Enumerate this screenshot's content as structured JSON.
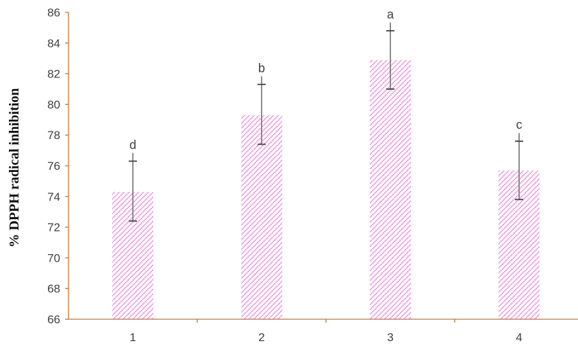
{
  "chart_data": {
    "type": "bar",
    "title": "",
    "xlabel": "",
    "ylabel": "% DPPH radical inhibition",
    "ylim": [
      66,
      86
    ],
    "yticks": [
      66,
      68,
      70,
      72,
      74,
      76,
      78,
      80,
      82,
      84,
      86
    ],
    "categories": [
      "1",
      "2",
      "3",
      "4"
    ],
    "values": [
      74.3,
      79.3,
      82.9,
      75.7
    ],
    "error_low": [
      72.4,
      77.4,
      81.0,
      73.8
    ],
    "error_high": [
      76.3,
      81.3,
      84.8,
      77.6
    ],
    "significance_labels": [
      "d",
      "b",
      "a",
      "c"
    ],
    "grid": false,
    "legend": "none",
    "colors": {
      "bar_pattern": "#e060d0",
      "axis": "#c8742c",
      "error_bar": "#808080",
      "error_cap": "#404040"
    }
  }
}
